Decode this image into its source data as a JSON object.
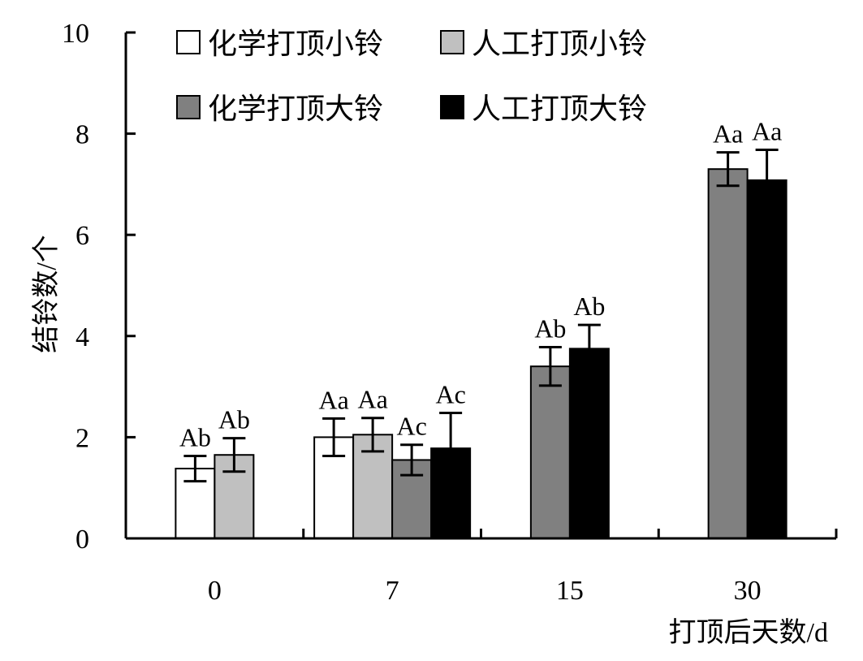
{
  "chart_data": {
    "type": "bar",
    "xlabel": "打顶后天数/d",
    "ylabel": "结铃数/个",
    "ylim": [
      0,
      10
    ],
    "yticks": [
      0,
      2,
      4,
      6,
      8,
      10
    ],
    "categories": [
      "0",
      "7",
      "15",
      "30"
    ],
    "grid": false,
    "legend_position": "top-left",
    "error_bars": true,
    "series": [
      {
        "name": "化学打顶小铃",
        "color": "#ffffff",
        "values": [
          1.38,
          2.0,
          null,
          null
        ],
        "errors": [
          0.25,
          0.37,
          null,
          null
        ],
        "labels": [
          "Ab",
          "Aa",
          "",
          ""
        ]
      },
      {
        "name": "人工打顶小铃",
        "color": "#c0c0c0",
        "values": [
          1.65,
          2.05,
          null,
          null
        ],
        "errors": [
          0.33,
          0.33,
          null,
          null
        ],
        "labels": [
          "Ab",
          "Aa",
          "",
          ""
        ]
      },
      {
        "name": "化学打顶大铃",
        "color": "#808080",
        "values": [
          null,
          1.55,
          3.4,
          7.3
        ],
        "errors": [
          null,
          0.3,
          0.38,
          0.33
        ],
        "labels": [
          "",
          "Ac",
          "Ab",
          "Aa"
        ]
      },
      {
        "name": "人工打顶大铃",
        "color": "#000000",
        "values": [
          null,
          1.78,
          3.75,
          7.08
        ],
        "errors": [
          null,
          0.7,
          0.47,
          0.6
        ],
        "labels": [
          "",
          "Ac",
          "Ab",
          "Aa"
        ]
      }
    ]
  }
}
